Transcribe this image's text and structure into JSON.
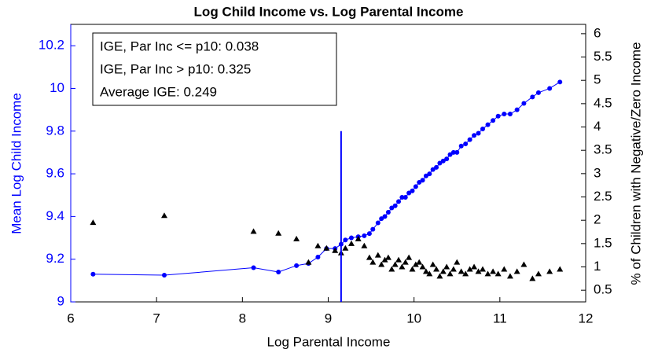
{
  "chart_data": {
    "type": "line-scatter",
    "title": "Log Child Income vs. Log Parental Income",
    "xlabel": "Log Parental Income",
    "ylabel": "Mean Log Child Income",
    "y2label": "% of Children with Negative/Zero Income",
    "annotations": [
      "IGE, Par Inc <= p10: 0.038",
      "IGE, Par Inc > p10: 0.325",
      "Average IGE: 0.249"
    ],
    "xlim": [
      6,
      12
    ],
    "xticks": [
      6,
      7,
      8,
      9,
      10,
      11,
      12
    ],
    "ylim": [
      9,
      10.3
    ],
    "yticks": [
      9,
      9.2,
      9.4,
      9.6,
      9.8,
      10,
      10.2
    ],
    "y2lim": [
      0.25,
      6.2
    ],
    "y2ticks": [
      0.5,
      1,
      1.5,
      2,
      2.5,
      3,
      3.5,
      4,
      4.5,
      5,
      5.5,
      6
    ],
    "reference_line": {
      "x": 9.15,
      "y_top": 9.8,
      "color": "#0000ff"
    },
    "x": [
      6.26,
      7.09,
      8.13,
      8.42,
      8.63,
      8.77,
      8.88,
      8.98,
      9.08,
      9.15,
      9.2,
      9.27,
      9.35,
      9.42,
      9.48,
      9.52,
      9.58,
      9.62,
      9.66,
      9.7,
      9.74,
      9.78,
      9.82,
      9.86,
      9.9,
      9.94,
      9.98,
      10.02,
      10.06,
      10.1,
      10.14,
      10.18,
      10.22,
      10.26,
      10.3,
      10.34,
      10.38,
      10.42,
      10.46,
      10.5,
      10.55,
      10.6,
      10.65,
      10.7,
      10.75,
      10.8,
      10.86,
      10.92,
      10.98,
      11.05,
      11.12,
      11.2,
      11.28,
      11.38,
      11.45,
      11.58,
      11.7
    ],
    "series": [
      {
        "color": "#0000ff",
        "marker": "circle",
        "axis": "y",
        "values": [
          9.13,
          9.125,
          9.16,
          9.14,
          9.17,
          9.18,
          9.21,
          9.25,
          9.25,
          9.27,
          9.29,
          9.3,
          9.305,
          9.31,
          9.32,
          9.34,
          9.37,
          9.39,
          9.4,
          9.42,
          9.44,
          9.45,
          9.47,
          9.49,
          9.49,
          9.51,
          9.52,
          9.54,
          9.56,
          9.57,
          9.59,
          9.6,
          9.62,
          9.63,
          9.65,
          9.66,
          9.67,
          9.69,
          9.7,
          9.7,
          9.73,
          9.74,
          9.76,
          9.78,
          9.79,
          9.81,
          9.83,
          9.85,
          9.87,
          9.88,
          9.88,
          9.9,
          9.93,
          9.96,
          9.98,
          10.0,
          10.03
        ]
      },
      {
        "color": "#000000",
        "marker": "triangle",
        "axis": "y2",
        "values": [
          1.95,
          2.1,
          1.76,
          1.72,
          1.6,
          1.1,
          1.45,
          1.4,
          1.35,
          1.3,
          1.4,
          1.5,
          1.6,
          1.45,
          1.2,
          1.1,
          1.25,
          1.05,
          1.15,
          1.2,
          0.95,
          1.05,
          1.15,
          1.0,
          1.1,
          1.2,
          0.95,
          1.05,
          1.1,
          1.0,
          0.9,
          0.85,
          1.05,
          0.95,
          0.8,
          0.9,
          1.0,
          0.85,
          0.95,
          1.1,
          0.9,
          0.85,
          0.95,
          1.0,
          0.9,
          0.95,
          0.85,
          0.9,
          0.85,
          0.95,
          0.8,
          0.9,
          1.05,
          0.75,
          0.85,
          0.9,
          0.95
        ]
      }
    ]
  }
}
